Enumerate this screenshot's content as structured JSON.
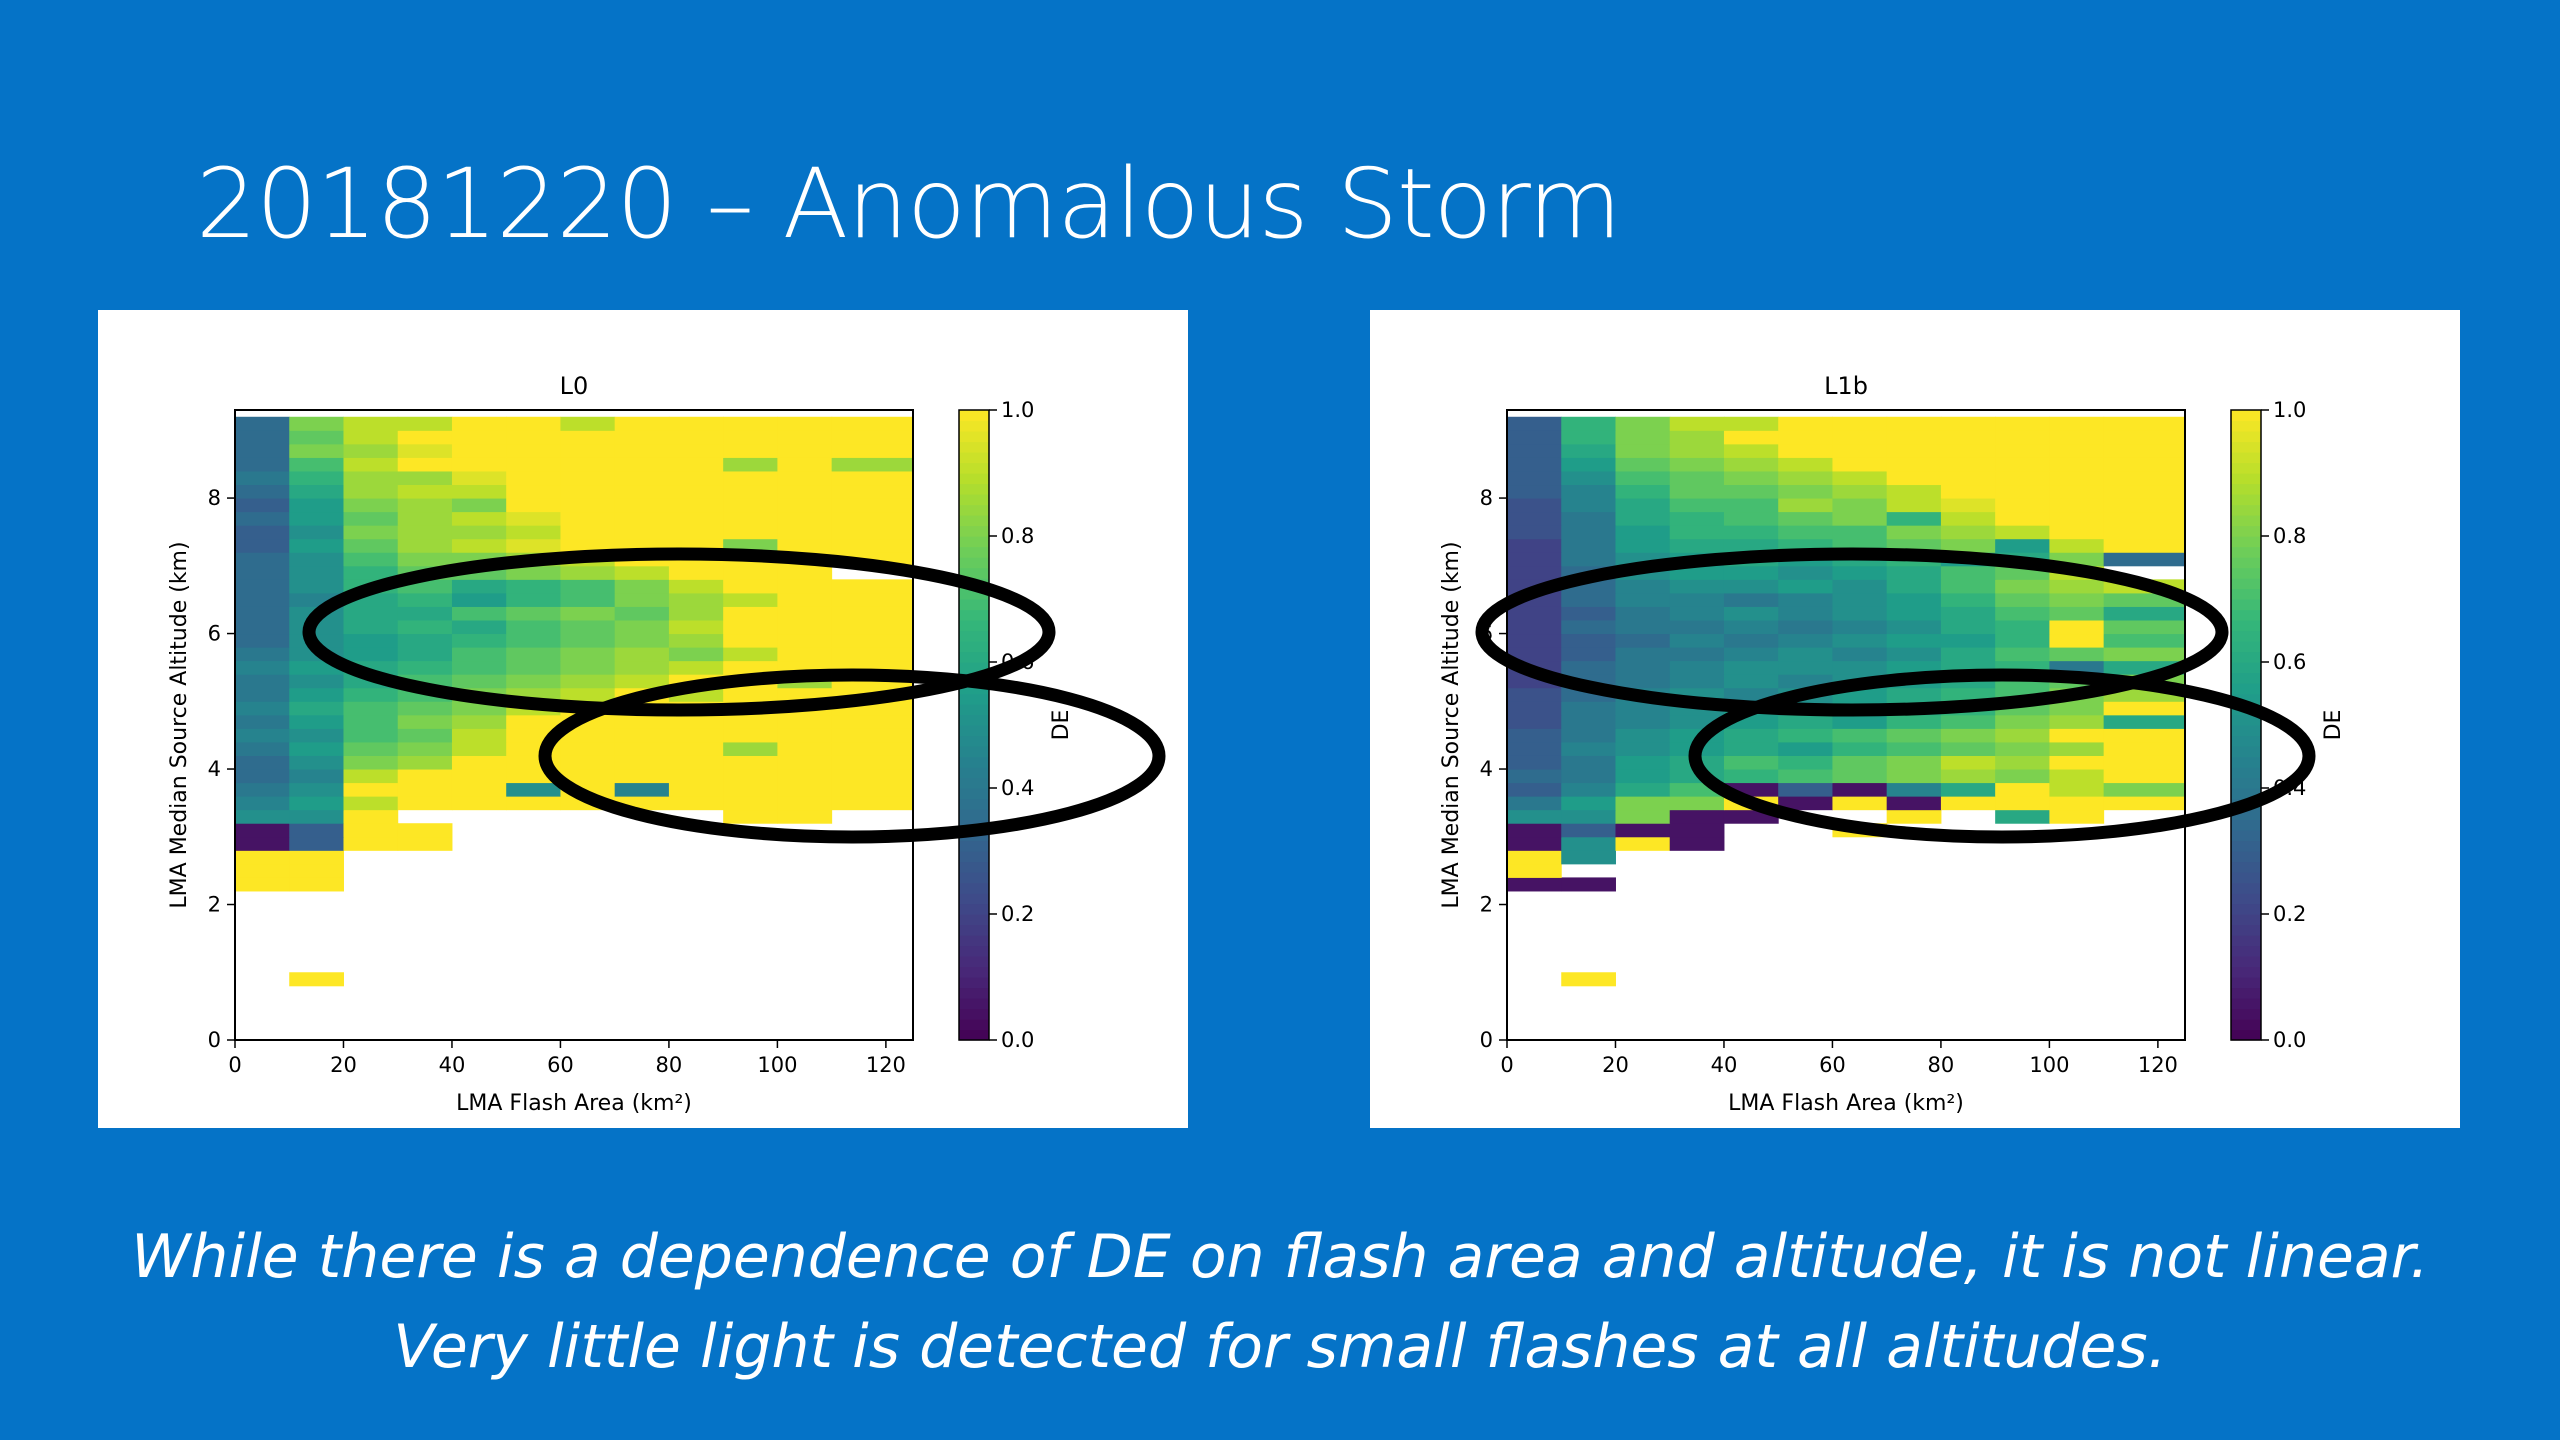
{
  "slide": {
    "title": "20181220 – Anomalous Storm",
    "caption_line1": "While there is a dependence of DE on flash area and altitude, it is not linear.",
    "caption_line2": "Very little light is detected for small flashes at all altitudes."
  },
  "chart_data": [
    {
      "type": "heatmap",
      "title": "L0",
      "xlabel": "LMA Flash Area (km²)",
      "ylabel": "LMA Median Source Altitude (km)",
      "colorbar_label": "DE",
      "xlim": [
        0,
        125
      ],
      "ylim": [
        0,
        9.3
      ],
      "xticks": [
        0,
        20,
        40,
        60,
        80,
        100,
        120
      ],
      "yticks": [
        0,
        2,
        4,
        6,
        8
      ],
      "colorbar_ticks": [
        0.0,
        0.2,
        0.4,
        0.6,
        0.8,
        1.0
      ],
      "colormap": "viridis",
      "grid": false,
      "x_edges": [
        0,
        10,
        20,
        30,
        40,
        50,
        60,
        70,
        80,
        90,
        100,
        110,
        125
      ],
      "y_edges": [
        0.8,
        1.0,
        2.2,
        2.4,
        2.6,
        2.8,
        3.0,
        3.2,
        3.4,
        3.6,
        3.8,
        4.0,
        4.2,
        4.4,
        4.6,
        4.8,
        5.0,
        5.2,
        5.4,
        5.6,
        5.8,
        6.0,
        6.2,
        6.4,
        6.6,
        6.8,
        7.0,
        7.2,
        7.4,
        7.6,
        7.8,
        8.0,
        8.2,
        8.4,
        8.6,
        8.8,
        9.0,
        9.2
      ],
      "values": [
        [
          null,
          1.0,
          null,
          null,
          null,
          null,
          null,
          null,
          null,
          null,
          null,
          null
        ],
        [
          null,
          null,
          null,
          null,
          null,
          null,
          null,
          null,
          null,
          null,
          null,
          null
        ],
        [
          1.0,
          1.0,
          null,
          null,
          null,
          null,
          null,
          null,
          null,
          null,
          null,
          null
        ],
        [
          1.0,
          1.0,
          null,
          null,
          null,
          null,
          null,
          null,
          null,
          null,
          null,
          null
        ],
        [
          1.0,
          1.0,
          null,
          null,
          null,
          null,
          null,
          null,
          null,
          null,
          null,
          null
        ],
        [
          0.05,
          0.3,
          1.0,
          1.0,
          null,
          null,
          null,
          null,
          null,
          null,
          null,
          null
        ],
        [
          0.05,
          0.3,
          1.0,
          1.0,
          null,
          null,
          null,
          null,
          null,
          null,
          null,
          null
        ],
        [
          0.5,
          0.5,
          1.0,
          null,
          null,
          null,
          null,
          null,
          null,
          1.0,
          1.0,
          null
        ],
        [
          0.45,
          0.55,
          0.9,
          1.0,
          1.0,
          1.0,
          1.0,
          1.0,
          1.0,
          1.0,
          1.0,
          1.0
        ],
        [
          0.4,
          0.5,
          1.0,
          1.0,
          1.0,
          0.5,
          1.0,
          0.45,
          1.0,
          1.0,
          1.0,
          1.0
        ],
        [
          0.35,
          0.45,
          0.9,
          1.0,
          1.0,
          1.0,
          1.0,
          1.0,
          1.0,
          1.0,
          1.0,
          1.0
        ],
        [
          0.35,
          0.5,
          0.8,
          0.85,
          1.0,
          1.0,
          1.0,
          1.0,
          1.0,
          1.0,
          1.0,
          1.0
        ],
        [
          0.4,
          0.55,
          0.75,
          0.8,
          0.9,
          1.0,
          1.0,
          1.0,
          1.0,
          0.85,
          1.0,
          1.0
        ],
        [
          0.45,
          0.5,
          0.7,
          0.75,
          0.9,
          1.0,
          1.0,
          1.0,
          1.0,
          1.0,
          1.0,
          1.0
        ],
        [
          0.4,
          0.55,
          0.7,
          0.8,
          0.85,
          1.0,
          1.0,
          1.0,
          1.0,
          1.0,
          1.0,
          1.0
        ],
        [
          0.45,
          0.6,
          0.7,
          0.75,
          0.8,
          0.9,
          1.0,
          1.0,
          1.0,
          1.0,
          1.0,
          1.0
        ],
        [
          0.4,
          0.55,
          0.65,
          0.7,
          0.8,
          0.85,
          0.9,
          1.0,
          0.9,
          1.0,
          1.0,
          1.0
        ],
        [
          0.4,
          0.5,
          0.6,
          0.7,
          0.75,
          0.8,
          0.85,
          0.9,
          1.0,
          1.0,
          0.85,
          1.0
        ],
        [
          0.45,
          0.55,
          0.6,
          0.65,
          0.7,
          0.75,
          0.8,
          0.85,
          0.9,
          1.0,
          1.0,
          1.0
        ],
        [
          0.4,
          0.5,
          0.55,
          0.6,
          0.7,
          0.75,
          0.8,
          0.85,
          0.8,
          0.9,
          1.0,
          1.0
        ],
        [
          0.35,
          0.5,
          0.55,
          0.6,
          0.65,
          0.7,
          0.75,
          0.8,
          0.85,
          1.0,
          1.0,
          1.0
        ],
        [
          0.35,
          0.5,
          0.6,
          0.65,
          0.6,
          0.7,
          0.75,
          0.8,
          0.9,
          1.0,
          1.0,
          1.0
        ],
        [
          0.35,
          0.5,
          0.6,
          0.6,
          0.7,
          0.75,
          0.8,
          0.75,
          0.85,
          1.0,
          1.0,
          1.0
        ],
        [
          0.35,
          0.45,
          0.6,
          0.65,
          0.55,
          0.65,
          0.7,
          0.8,
          0.85,
          0.9,
          1.0,
          1.0
        ],
        [
          0.35,
          0.5,
          0.65,
          0.7,
          0.6,
          0.65,
          0.7,
          0.8,
          0.9,
          1.0,
          1.0,
          1.0
        ],
        [
          0.35,
          0.5,
          0.65,
          0.75,
          0.75,
          0.8,
          0.85,
          0.9,
          1.0,
          1.0,
          1.0,
          null
        ],
        [
          0.35,
          0.5,
          0.7,
          0.8,
          0.8,
          0.85,
          0.9,
          1.0,
          1.0,
          1.0,
          1.0,
          1.0
        ],
        [
          0.3,
          0.55,
          0.75,
          0.85,
          0.9,
          0.95,
          1.0,
          1.0,
          1.0,
          0.8,
          1.0,
          1.0
        ],
        [
          0.3,
          0.5,
          0.8,
          0.85,
          0.85,
          0.9,
          1.0,
          1.0,
          1.0,
          1.0,
          1.0,
          1.0
        ],
        [
          0.35,
          0.55,
          0.75,
          0.85,
          0.9,
          0.95,
          1.0,
          1.0,
          1.0,
          1.0,
          1.0,
          1.0
        ],
        [
          0.3,
          0.55,
          0.8,
          0.85,
          0.8,
          1.0,
          1.0,
          1.0,
          1.0,
          1.0,
          1.0,
          1.0
        ],
        [
          0.35,
          0.6,
          0.85,
          0.9,
          0.9,
          1.0,
          1.0,
          1.0,
          1.0,
          1.0,
          1.0,
          1.0
        ],
        [
          0.4,
          0.65,
          0.85,
          0.85,
          0.95,
          1.0,
          1.0,
          1.0,
          1.0,
          1.0,
          1.0,
          1.0
        ],
        [
          0.35,
          0.7,
          0.9,
          1.0,
          1.0,
          1.0,
          1.0,
          1.0,
          1.0,
          0.85,
          1.0,
          0.85
        ],
        [
          0.35,
          0.8,
          0.85,
          0.95,
          1.0,
          1.0,
          1.0,
          1.0,
          1.0,
          1.0,
          1.0,
          1.0
        ],
        [
          0.35,
          0.75,
          0.9,
          1.0,
          1.0,
          1.0,
          1.0,
          1.0,
          1.0,
          1.0,
          1.0,
          1.0
        ],
        [
          0.35,
          0.8,
          0.9,
          0.9,
          1.0,
          1.0,
          0.9,
          1.0,
          1.0,
          1.0,
          1.0,
          1.0
        ]
      ]
    },
    {
      "type": "heatmap",
      "title": "L1b",
      "xlabel": "LMA Flash Area (km²)",
      "ylabel": "LMA Median Source Altitude (km)",
      "colorbar_label": "DE",
      "xlim": [
        0,
        125
      ],
      "ylim": [
        0,
        9.3
      ],
      "xticks": [
        0,
        20,
        40,
        60,
        80,
        100,
        120
      ],
      "yticks": [
        0,
        2,
        4,
        6,
        8
      ],
      "colorbar_ticks": [
        0.0,
        0.2,
        0.4,
        0.6,
        0.8,
        1.0
      ],
      "colormap": "viridis",
      "grid": false,
      "x_edges": [
        0,
        10,
        20,
        30,
        40,
        50,
        60,
        70,
        80,
        90,
        100,
        110,
        125
      ],
      "y_edges": [
        0.8,
        1.0,
        2.2,
        2.4,
        2.6,
        2.8,
        3.0,
        3.2,
        3.4,
        3.6,
        3.8,
        4.0,
        4.2,
        4.4,
        4.6,
        4.8,
        5.0,
        5.2,
        5.4,
        5.6,
        5.8,
        6.0,
        6.2,
        6.4,
        6.6,
        6.8,
        7.0,
        7.2,
        7.4,
        7.6,
        7.8,
        8.0,
        8.2,
        8.4,
        8.6,
        8.8,
        9.0,
        9.2
      ],
      "values": [
        [
          null,
          1.0,
          null,
          null,
          null,
          null,
          null,
          null,
          null,
          null,
          null,
          null
        ],
        [
          null,
          null,
          null,
          null,
          null,
          null,
          null,
          null,
          null,
          null,
          null,
          null
        ],
        [
          0.05,
          0.05,
          null,
          null,
          null,
          null,
          null,
          null,
          null,
          null,
          null,
          null
        ],
        [
          1.0,
          null,
          null,
          null,
          null,
          null,
          null,
          null,
          null,
          null,
          null,
          null
        ],
        [
          1.0,
          0.5,
          null,
          null,
          null,
          null,
          null,
          null,
          null,
          null,
          null,
          null
        ],
        [
          0.05,
          0.5,
          1.0,
          0.05,
          null,
          null,
          null,
          null,
          null,
          null,
          null,
          null
        ],
        [
          0.05,
          0.3,
          0.05,
          0.05,
          null,
          null,
          1.0,
          null,
          null,
          null,
          null,
          null
        ],
        [
          0.5,
          0.5,
          0.8,
          0.05,
          0.05,
          null,
          null,
          1.0,
          null,
          0.6,
          1.0,
          null
        ],
        [
          0.4,
          0.55,
          0.8,
          0.8,
          1.0,
          0.05,
          1.0,
          0.05,
          1.0,
          1.0,
          1.0,
          1.0
        ],
        [
          0.3,
          0.45,
          0.6,
          0.7,
          0.05,
          0.3,
          0.05,
          0.45,
          0.6,
          1.0,
          0.9,
          0.8
        ],
        [
          0.35,
          0.4,
          0.55,
          0.6,
          0.65,
          0.7,
          0.75,
          0.8,
          0.85,
          0.8,
          0.9,
          1.0
        ],
        [
          0.3,
          0.4,
          0.55,
          0.6,
          0.7,
          0.65,
          0.75,
          0.8,
          0.9,
          0.85,
          1.0,
          1.0
        ],
        [
          0.3,
          0.45,
          0.5,
          0.55,
          0.6,
          0.55,
          0.65,
          0.7,
          0.75,
          0.8,
          0.85,
          1.0
        ],
        [
          0.3,
          0.4,
          0.5,
          0.55,
          0.6,
          0.65,
          0.7,
          0.75,
          0.8,
          0.85,
          1.0,
          1.0
        ],
        [
          0.25,
          0.4,
          0.45,
          0.5,
          0.55,
          0.6,
          0.55,
          0.65,
          0.7,
          0.8,
          0.85,
          0.6
        ],
        [
          0.25,
          0.4,
          0.45,
          0.5,
          0.55,
          0.5,
          0.55,
          0.6,
          0.65,
          0.75,
          0.8,
          1.0
        ],
        [
          0.25,
          0.35,
          0.45,
          0.5,
          0.45,
          0.5,
          0.55,
          0.6,
          0.65,
          0.7,
          0.8,
          0.85
        ],
        [
          0.2,
          0.35,
          0.4,
          0.45,
          0.5,
          0.45,
          0.5,
          0.55,
          0.6,
          0.7,
          0.75,
          0.8
        ],
        [
          0.2,
          0.35,
          0.4,
          0.45,
          0.5,
          0.5,
          0.5,
          0.55,
          0.6,
          0.65,
          0.4,
          0.6
        ],
        [
          0.2,
          0.3,
          0.4,
          0.4,
          0.45,
          0.5,
          0.45,
          0.5,
          0.6,
          0.7,
          0.75,
          0.8
        ],
        [
          0.2,
          0.3,
          0.35,
          0.45,
          0.4,
          0.45,
          0.5,
          0.55,
          0.55,
          0.65,
          1.0,
          0.7
        ],
        [
          0.2,
          0.35,
          0.4,
          0.4,
          0.45,
          0.4,
          0.45,
          0.5,
          0.6,
          0.65,
          1.0,
          0.75
        ],
        [
          0.2,
          0.3,
          0.4,
          0.45,
          0.5,
          0.45,
          0.5,
          0.55,
          0.6,
          0.7,
          0.75,
          0.6
        ],
        [
          0.2,
          0.35,
          0.45,
          0.45,
          0.4,
          0.45,
          0.5,
          0.55,
          0.65,
          0.75,
          0.8,
          0.75
        ],
        [
          0.2,
          0.35,
          0.45,
          0.5,
          0.5,
          0.55,
          0.5,
          0.6,
          0.7,
          0.8,
          0.85,
          0.9
        ],
        [
          0.2,
          0.35,
          0.5,
          0.55,
          0.55,
          0.5,
          0.55,
          0.6,
          0.7,
          0.75,
          0.9,
          null
        ],
        [
          0.2,
          0.4,
          0.5,
          0.55,
          0.6,
          0.55,
          0.6,
          0.65,
          0.55,
          0.6,
          0.8,
          0.35
        ],
        [
          0.2,
          0.4,
          0.55,
          0.6,
          0.6,
          0.65,
          0.7,
          0.75,
          0.8,
          0.55,
          0.9,
          1.0
        ],
        [
          0.25,
          0.4,
          0.55,
          0.65,
          0.65,
          0.7,
          0.7,
          0.8,
          0.85,
          0.9,
          1.0,
          1.0
        ],
        [
          0.25,
          0.4,
          0.6,
          0.65,
          0.7,
          0.75,
          0.8,
          0.65,
          0.9,
          1.0,
          1.0,
          1.0
        ],
        [
          0.25,
          0.45,
          0.6,
          0.7,
          0.7,
          0.85,
          0.8,
          0.9,
          0.95,
          1.0,
          1.0,
          1.0
        ],
        [
          0.3,
          0.45,
          0.65,
          0.75,
          0.75,
          0.8,
          0.85,
          0.9,
          1.0,
          1.0,
          1.0,
          1.0
        ],
        [
          0.3,
          0.5,
          0.7,
          0.75,
          0.8,
          0.85,
          0.9,
          1.0,
          1.0,
          1.0,
          1.0,
          1.0
        ],
        [
          0.3,
          0.55,
          0.75,
          0.8,
          0.85,
          0.9,
          1.0,
          1.0,
          1.0,
          1.0,
          1.0,
          1.0
        ],
        [
          0.3,
          0.6,
          0.8,
          0.85,
          0.9,
          1.0,
          1.0,
          1.0,
          1.0,
          1.0,
          1.0,
          1.0
        ],
        [
          0.3,
          0.65,
          0.8,
          0.85,
          1.0,
          1.0,
          1.0,
          1.0,
          1.0,
          1.0,
          1.0,
          1.0
        ],
        [
          0.3,
          0.65,
          0.8,
          0.9,
          0.9,
          1.0,
          1.0,
          1.0,
          1.0,
          1.0,
          1.0,
          1.0
        ]
      ]
    }
  ]
}
